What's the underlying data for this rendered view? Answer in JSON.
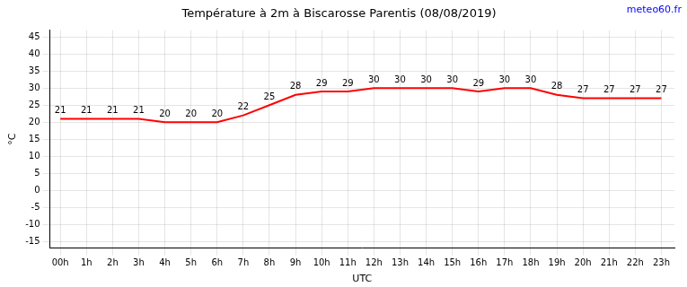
{
  "chart_data": {
    "type": "line",
    "title": "Température à 2m à Biscarosse Parentis (08/08/2019)",
    "x_label": "UTC",
    "y_label": "°C",
    "annotations": [
      "meteo60.fr"
    ],
    "x": [
      0,
      1,
      2,
      3,
      4,
      5,
      6,
      7,
      8,
      9,
      10,
      11,
      12,
      13,
      14,
      15,
      16,
      17,
      18,
      19,
      20,
      21,
      22,
      23
    ],
    "series": [
      {
        "color": "#ff0000",
        "values": [
          21,
          21,
          21,
          21,
          20,
          20,
          20,
          22,
          25,
          28,
          29,
          29,
          30,
          30,
          30,
          30,
          29,
          30,
          30,
          28,
          27,
          27,
          27,
          27
        ]
      }
    ],
    "xlim": [
      -0.4,
      23.5
    ],
    "xticks": [
      {
        "value": 0,
        "label": "00h"
      },
      {
        "value": 1,
        "label": "1h"
      },
      {
        "value": 2,
        "label": "2h"
      },
      {
        "value": 3,
        "label": "3h"
      },
      {
        "value": 4,
        "label": "4h"
      },
      {
        "value": 5,
        "label": "5h"
      },
      {
        "value": 6,
        "label": "6h"
      },
      {
        "value": 7,
        "label": "7h"
      },
      {
        "value": 8,
        "label": "8h"
      },
      {
        "value": 9,
        "label": "9h"
      },
      {
        "value": 10,
        "label": "10h"
      },
      {
        "value": 11,
        "label": "11h"
      },
      {
        "value": 12,
        "label": "12h"
      },
      {
        "value": 13,
        "label": "13h"
      },
      {
        "value": 14,
        "label": "14h"
      },
      {
        "value": 15,
        "label": "15h"
      },
      {
        "value": 16,
        "label": "16h"
      },
      {
        "value": 17,
        "label": "17h"
      },
      {
        "value": 18,
        "label": "18h"
      },
      {
        "value": 19,
        "label": "19h"
      },
      {
        "value": 20,
        "label": "20h"
      },
      {
        "value": 21,
        "label": "21h"
      },
      {
        "value": 22,
        "label": "22h"
      },
      {
        "value": 23,
        "label": "23h"
      }
    ],
    "ylim": [
      -17,
      47
    ],
    "yticks": [
      -15,
      -10,
      -5,
      0,
      5,
      10,
      15,
      20,
      25,
      30,
      35,
      40,
      45
    ],
    "grid": true,
    "data_labels": true
  }
}
